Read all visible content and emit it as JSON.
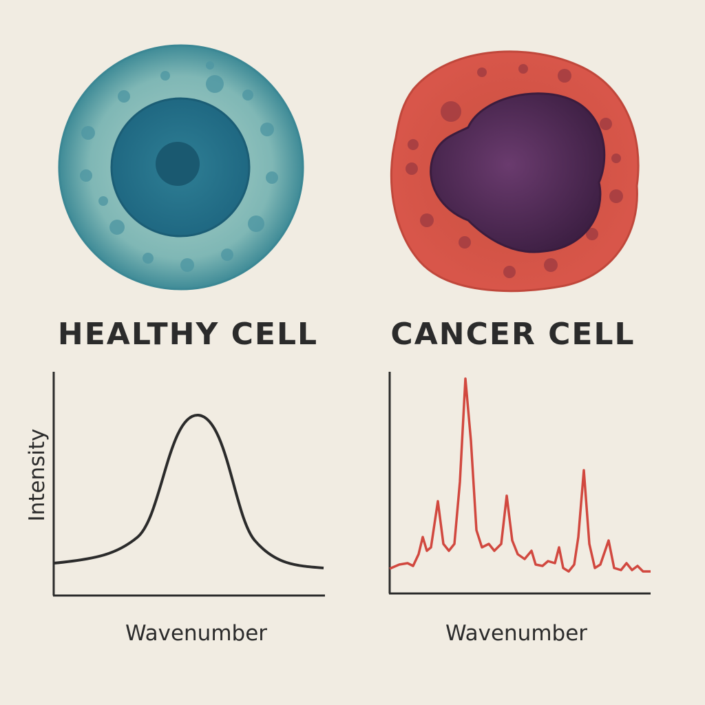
{
  "panels": [
    {
      "label": "HEALTHY CELL",
      "y_axis_label": "Intensity",
      "x_axis_label": "Wavenumber"
    },
    {
      "label": "CANCER CELL",
      "x_axis_label": "Wavenumber"
    }
  ]
}
